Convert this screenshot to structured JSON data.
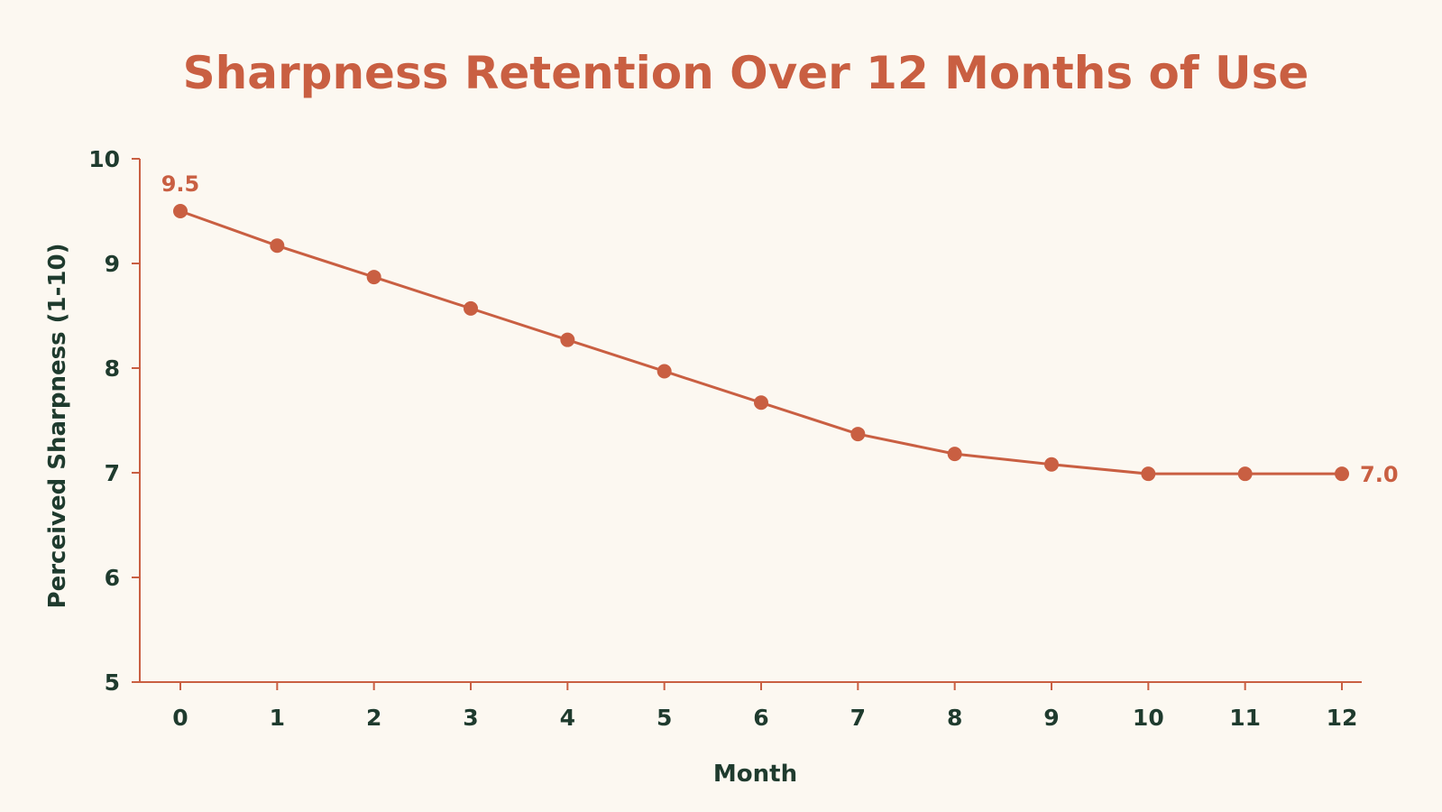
{
  "colors": {
    "background": "#fcf8f1",
    "accent": "#c95f42",
    "text": "#1f3b2e"
  },
  "chart_data": {
    "type": "line",
    "title": "Sharpness Retention Over 12 Months of Use",
    "xlabel": "Month",
    "ylabel": "Perceived Sharpness (1-10)",
    "x": [
      0,
      1,
      2,
      3,
      4,
      5,
      6,
      7,
      8,
      9,
      10,
      11,
      12
    ],
    "x_tick_labels": [
      "0",
      "1",
      "2",
      "3",
      "4",
      "5",
      "6",
      "7",
      "8",
      "9",
      "10",
      "11",
      "12"
    ],
    "y_tick_labels": [
      "5",
      "6",
      "7",
      "8",
      "9",
      "10"
    ],
    "y_ticks": [
      5,
      6,
      7,
      8,
      9,
      10
    ],
    "ylim": [
      5,
      10
    ],
    "xlim": [
      0,
      12
    ],
    "series": [
      {
        "values": [
          9.5,
          9.17,
          8.87,
          8.57,
          8.27,
          7.97,
          7.67,
          7.37,
          7.18,
          7.08,
          6.99,
          6.99,
          6.99
        ]
      }
    ],
    "data_labels": [
      {
        "index": 0,
        "text": "9.5"
      },
      {
        "index": 12,
        "text": "7.0"
      }
    ],
    "grid": false,
    "legend": "none"
  }
}
